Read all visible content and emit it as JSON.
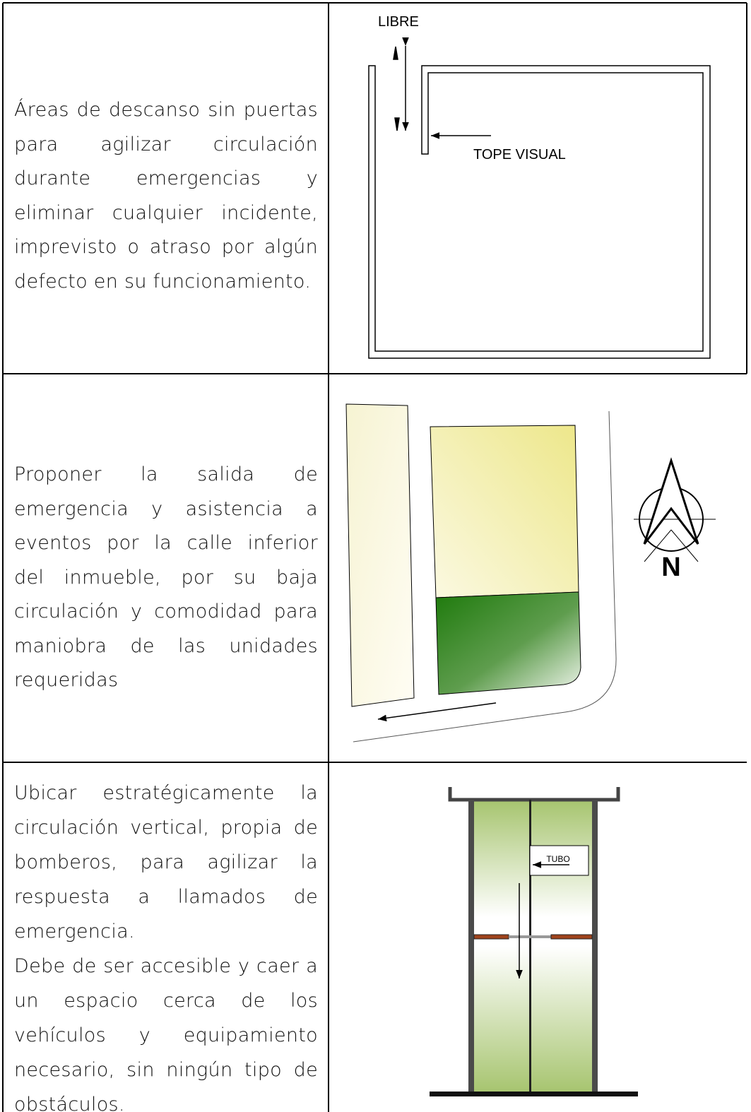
{
  "rows": [
    {
      "paragraphs": [
        "Áreas de descanso sin puertas para agilizar circulación durante emergencias y eliminar cualquier incidente, imprevisto o atraso por algún defecto en su funcionamiento."
      ],
      "diagram": {
        "labels": [
          "LIBRE",
          "TOPE VISUAL"
        ]
      }
    },
    {
      "paragraphs": [
        "Proponer la salida de emergencia y asistencia a eventos por la calle inferior del inmueble, por su baja circulación y comodidad para maniobra de las unidades requeridas"
      ],
      "diagram": {
        "labels": [
          "N"
        ]
      }
    },
    {
      "paragraphs": [
        "Ubicar estratégicamente la circulación vertical, propia de bomberos, para agilizar la respuesta a llamados de emergencia.",
        "Debe de ser accesible y caer a un espacio cerca de los vehículos y equipamiento necesario, sin ningún tipo de obstáculos."
      ],
      "diagram": {
        "labels": [
          "TUBO"
        ]
      }
    }
  ]
}
